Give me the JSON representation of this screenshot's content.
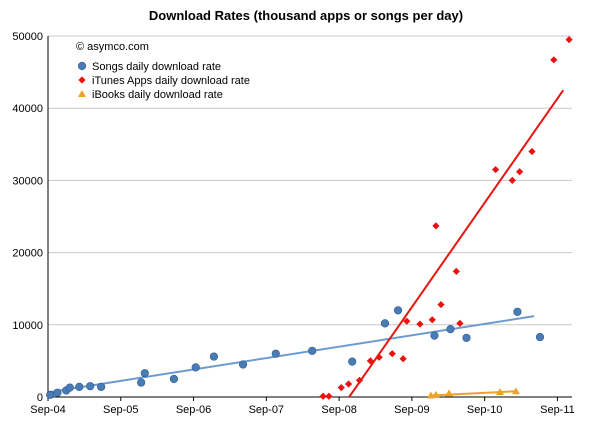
{
  "chart_data": {
    "type": "scatter",
    "title": "Download Rates (thousand apps or songs per day)",
    "credit": "© asymco.com",
    "xlabel": "",
    "ylabel": "",
    "xlim": [
      2004.67,
      2011.87
    ],
    "ylim": [
      0,
      50000
    ],
    "x_ticks": [
      {
        "label": "Sep-04",
        "value": 2004.67
      },
      {
        "label": "Sep-05",
        "value": 2005.67
      },
      {
        "label": "Sep-06",
        "value": 2006.67
      },
      {
        "label": "Sep-07",
        "value": 2007.67
      },
      {
        "label": "Sep-08",
        "value": 2008.67
      },
      {
        "label": "Sep-09",
        "value": 2009.67
      },
      {
        "label": "Sep-10",
        "value": 2010.67
      },
      {
        "label": "Sep-11",
        "value": 2011.67
      }
    ],
    "y_ticks": [
      {
        "label": "0",
        "value": 0
      },
      {
        "label": "10000",
        "value": 10000
      },
      {
        "label": "20000",
        "value": 20000
      },
      {
        "label": "30000",
        "value": 30000
      },
      {
        "label": "40000",
        "value": 40000
      },
      {
        "label": "50000",
        "value": 50000
      }
    ],
    "gridlines": "horizontal",
    "legend_position": "top-left",
    "series": [
      {
        "name": "Songs daily download rate",
        "marker": "circle",
        "color": "#4a7bb5",
        "trendline_color": "#6b9bd1",
        "points": [
          [
            2004.7,
            300
          ],
          [
            2004.8,
            600
          ],
          [
            2004.92,
            900
          ],
          [
            2004.97,
            1300
          ],
          [
            2005.1,
            1400
          ],
          [
            2005.25,
            1500
          ],
          [
            2005.4,
            1400
          ],
          [
            2005.95,
            2000
          ],
          [
            2006.0,
            3300
          ],
          [
            2006.4,
            2500
          ],
          [
            2006.7,
            4100
          ],
          [
            2006.95,
            5600
          ],
          [
            2007.35,
            4500
          ],
          [
            2007.8,
            6000
          ],
          [
            2008.3,
            6400
          ],
          [
            2008.85,
            4900
          ],
          [
            2009.3,
            10200
          ],
          [
            2009.48,
            12000
          ],
          [
            2009.98,
            8500
          ],
          [
            2010.2,
            9400
          ],
          [
            2010.42,
            8200
          ],
          [
            2011.12,
            11800
          ],
          [
            2011.43,
            8300
          ]
        ],
        "trendline": [
          [
            2004.7,
            700
          ],
          [
            2011.35,
            11200
          ]
        ]
      },
      {
        "name": "iTunes Apps daily download rate",
        "marker": "diamond",
        "color": "#e8140f",
        "trendline_color": "#e8140f",
        "points": [
          [
            2008.45,
            100
          ],
          [
            2008.53,
            100
          ],
          [
            2008.7,
            1300
          ],
          [
            2008.8,
            1800
          ],
          [
            2008.95,
            2300
          ],
          [
            2009.1,
            5000
          ],
          [
            2009.22,
            5500
          ],
          [
            2009.4,
            6000
          ],
          [
            2009.55,
            5300
          ],
          [
            2009.6,
            10500
          ],
          [
            2009.78,
            10100
          ],
          [
            2009.95,
            10700
          ],
          [
            2010.0,
            23700
          ],
          [
            2010.07,
            12800
          ],
          [
            2010.28,
            17400
          ],
          [
            2010.33,
            10200
          ],
          [
            2010.82,
            31500
          ],
          [
            2011.05,
            30000
          ],
          [
            2011.15,
            31200
          ],
          [
            2011.32,
            34000
          ],
          [
            2011.62,
            46700
          ],
          [
            2011.83,
            49500
          ]
        ],
        "trendline": [
          [
            2008.6,
            -3000
          ],
          [
            2011.75,
            42500
          ]
        ]
      },
      {
        "name": "iBooks daily download rate",
        "marker": "triangle",
        "color": "#f0a12c",
        "trendline_color": "#f0a12c",
        "points": [
          [
            2009.93,
            200
          ],
          [
            2010.0,
            300
          ],
          [
            2010.18,
            500
          ],
          [
            2010.88,
            700
          ],
          [
            2011.1,
            800
          ]
        ],
        "trendline": [
          [
            2009.93,
            200
          ],
          [
            2011.1,
            800
          ]
        ]
      }
    ]
  }
}
